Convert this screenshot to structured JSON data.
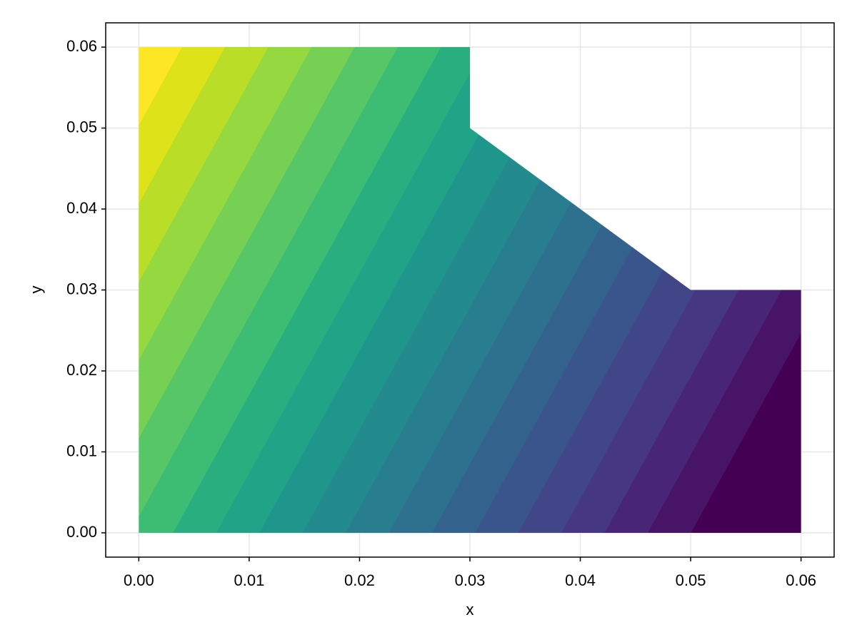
{
  "chart_data": {
    "type": "filled-contour",
    "x_label": "x",
    "y_label": "y",
    "x": [
      0,
      0.06,
      0.06,
      0.05,
      0.03,
      0.03,
      0
    ],
    "y": [
      0,
      0,
      0.03,
      0.03,
      0.05,
      0.06,
      0.06
    ],
    "colors": [
      "#440154",
      "#481467",
      "#482576",
      "#453781",
      "#404688",
      "#39558c",
      "#33638d",
      "#2d718e",
      "#287d8e",
      "#238a8d",
      "#1f968b",
      "#20a386",
      "#29af7f",
      "#3dbc74",
      "#56c667",
      "#75d054",
      "#95d840",
      "#bade28",
      "#dde318",
      "#fde725"
    ],
    "xlim": [
      -0.003,
      0.063
    ],
    "ylim": [
      -0.003,
      0.063
    ],
    "xticks": [
      {
        "value": 0,
        "label": "0.00"
      },
      0.01,
      0.02,
      0.03,
      0.04,
      0.05,
      0.06
    ],
    "yticks": [
      {
        "value": 0,
        "label": "0.00"
      },
      0.01,
      0.02,
      0.03,
      0.04,
      0.05,
      0.06
    ],
    "grid": true
  }
}
